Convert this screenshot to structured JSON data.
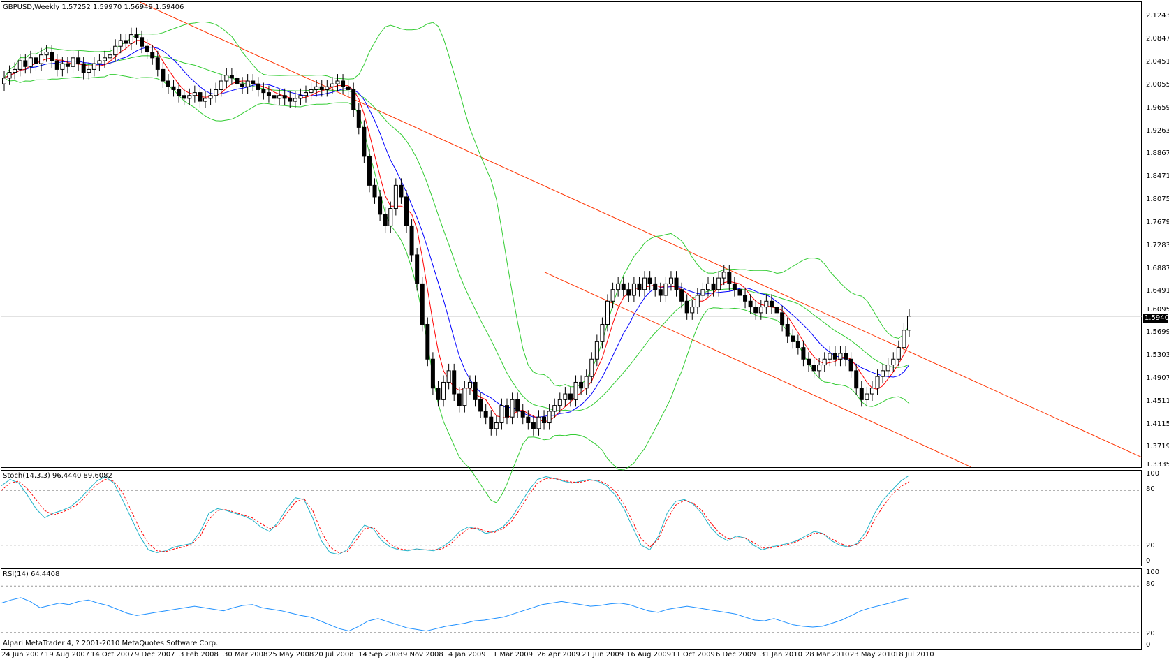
{
  "chart_data": {
    "type": "candlestick",
    "symbol": "GBPUSD",
    "timeframe": "Weekly",
    "header": "GBPUSD,Weekly  1.57252 1.59970 1.56949 1.59406",
    "last_price": "1.59406",
    "ylim": [
      1.3335,
      2.1362
    ],
    "price_ticks": [
      "2.12430",
      "2.08470",
      "2.04510",
      "2.00550",
      "1.96590",
      "1.92630",
      "1.88670",
      "1.84710",
      "1.80750",
      "1.76790",
      "1.72830",
      "1.68870",
      "1.64910",
      "1.60950",
      "1.56990",
      "1.53030",
      "1.49070",
      "1.45110",
      "1.41150",
      "1.37190",
      "1.33350"
    ],
    "date_ticks": [
      "24 Jun 2007",
      "19 Aug 2007",
      "14 Oct 2007",
      "9 Dec 2007",
      "3 Feb 2008",
      "30 Mar 2008",
      "25 May 2008",
      "20 Jul 2008",
      "14 Sep 2008",
      "9 Nov 2008",
      "4 Jan 2009",
      "1 Mar 2009",
      "26 Apr 2009",
      "21 Jun 2009",
      "16 Aug 2009",
      "11 Oct 2009",
      "6 Dec 2009",
      "31 Jan 2010",
      "28 Mar 2010",
      "23 May 2010",
      "18 Jul 2010"
    ],
    "close_series": [
      2.005,
      2.015,
      2.02,
      2.035,
      2.025,
      2.04,
      2.03,
      2.045,
      2.05,
      2.035,
      2.02,
      2.03,
      2.025,
      2.04,
      2.03,
      2.015,
      2.02,
      2.03,
      2.035,
      2.04,
      2.045,
      2.06,
      2.07,
      2.065,
      2.08,
      2.075,
      2.06,
      2.05,
      2.04,
      2.02,
      2.0,
      1.99,
      1.985,
      1.975,
      1.97,
      1.975,
      1.98,
      1.965,
      1.97,
      1.975,
      1.985,
      2.0,
      2.01,
      2.005,
      1.995,
      1.99,
      2.0,
      1.995,
      1.985,
      1.98,
      1.975,
      1.97,
      1.975,
      1.97,
      1.965,
      1.97,
      1.975,
      1.98,
      1.985,
      1.99,
      1.985,
      1.99,
      1.995,
      2.0,
      1.99,
      1.985,
      1.95,
      1.92,
      1.87,
      1.82,
      1.8,
      1.77,
      1.75,
      1.78,
      1.82,
      1.8,
      1.75,
      1.7,
      1.65,
      1.58,
      1.52,
      1.47,
      1.45,
      1.48,
      1.5,
      1.46,
      1.44,
      1.47,
      1.48,
      1.45,
      1.43,
      1.42,
      1.4,
      1.41,
      1.44,
      1.42,
      1.45,
      1.43,
      1.42,
      1.41,
      1.4,
      1.42,
      1.41,
      1.43,
      1.44,
      1.45,
      1.46,
      1.45,
      1.48,
      1.47,
      1.49,
      1.52,
      1.55,
      1.58,
      1.62,
      1.64,
      1.65,
      1.64,
      1.63,
      1.65,
      1.64,
      1.66,
      1.65,
      1.64,
      1.63,
      1.65,
      1.66,
      1.64,
      1.62,
      1.6,
      1.61,
      1.63,
      1.64,
      1.65,
      1.64,
      1.66,
      1.67,
      1.65,
      1.64,
      1.63,
      1.62,
      1.61,
      1.6,
      1.61,
      1.62,
      1.61,
      1.6,
      1.58,
      1.56,
      1.55,
      1.54,
      1.52,
      1.51,
      1.5,
      1.51,
      1.52,
      1.53,
      1.52,
      1.53,
      1.52,
      1.5,
      1.47,
      1.45,
      1.46,
      1.47,
      1.49,
      1.5,
      1.51,
      1.52,
      1.54,
      1.57,
      1.594
    ],
    "stoch_label": "Stoch(14,3,3) 96.4440 89.6082",
    "stoch_levels": [
      "100",
      "80",
      "20",
      "0"
    ],
    "stoch_main": [
      85,
      92,
      88,
      75,
      60,
      50,
      55,
      58,
      62,
      70,
      80,
      90,
      95,
      88,
      70,
      50,
      30,
      15,
      12,
      14,
      18,
      20,
      22,
      35,
      55,
      60,
      58,
      55,
      52,
      48,
      40,
      35,
      45,
      60,
      72,
      70,
      50,
      25,
      12,
      10,
      15,
      30,
      42,
      38,
      25,
      18,
      15,
      14,
      16,
      15,
      14,
      18,
      25,
      35,
      40,
      38,
      33,
      35,
      40,
      50,
      65,
      80,
      92,
      95,
      93,
      90,
      88,
      90,
      92,
      90,
      85,
      75,
      60,
      40,
      20,
      15,
      30,
      55,
      68,
      70,
      65,
      55,
      40,
      30,
      25,
      30,
      28,
      20,
      15,
      18,
      20,
      22,
      25,
      30,
      35,
      33,
      25,
      20,
      18,
      22,
      35,
      55,
      70,
      80,
      90,
      96.444
    ],
    "stoch_signal": [
      80,
      88,
      90,
      82,
      70,
      58,
      53,
      56,
      60,
      66,
      76,
      86,
      92,
      90,
      78,
      58,
      38,
      22,
      14,
      13,
      16,
      18,
      21,
      30,
      48,
      58,
      59,
      56,
      53,
      50,
      44,
      38,
      42,
      55,
      67,
      71,
      58,
      35,
      18,
      12,
      13,
      25,
      38,
      40,
      30,
      21,
      16,
      15,
      15,
      15,
      15,
      16,
      22,
      31,
      38,
      39,
      35,
      34,
      38,
      46,
      60,
      75,
      88,
      93,
      93,
      91,
      89,
      89,
      91,
      91,
      87,
      79,
      65,
      46,
      27,
      18,
      27,
      48,
      64,
      69,
      66,
      58,
      45,
      34,
      27,
      28,
      28,
      23,
      17,
      17,
      19,
      21,
      24,
      28,
      33,
      33,
      27,
      22,
      19,
      21,
      30,
      48,
      63,
      75,
      84,
      89.6082
    ],
    "rsi_label": "RSI(14) 64.4408",
    "rsi_levels": [
      "100",
      "80",
      "20",
      "0"
    ],
    "rsi_values": [
      58,
      62,
      65,
      60,
      52,
      55,
      58,
      56,
      60,
      62,
      58,
      55,
      50,
      45,
      42,
      44,
      46,
      48,
      50,
      52,
      54,
      52,
      50,
      48,
      52,
      55,
      56,
      52,
      50,
      48,
      45,
      42,
      40,
      35,
      30,
      25,
      22,
      28,
      35,
      38,
      34,
      30,
      26,
      24,
      22,
      25,
      28,
      30,
      32,
      35,
      36,
      38,
      40,
      44,
      48,
      52,
      56,
      58,
      60,
      58,
      56,
      54,
      55,
      57,
      58,
      56,
      52,
      48,
      46,
      50,
      52,
      54,
      52,
      50,
      48,
      46,
      44,
      40,
      36,
      35,
      38,
      34,
      30,
      28,
      27,
      28,
      32,
      36,
      42,
      48,
      52,
      55,
      58,
      62,
      64.4408
    ]
  },
  "footer_copyright": "Alpari MetaTrader 4, ? 2001-2010 MetaQuotes Software Corp."
}
